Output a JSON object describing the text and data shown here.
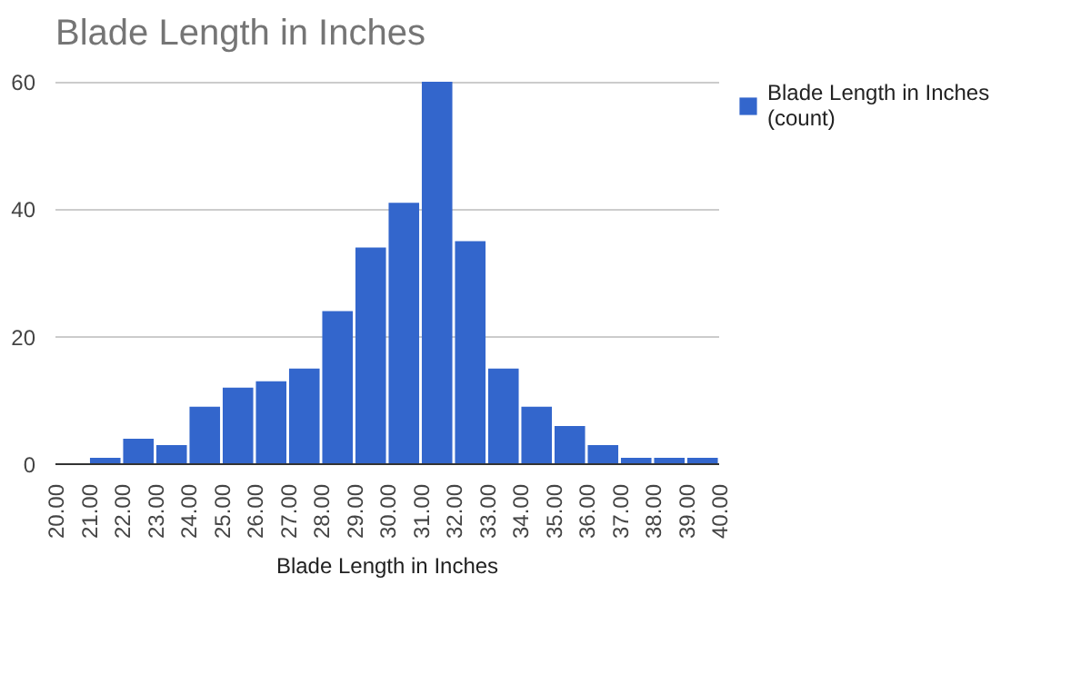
{
  "chart_data": {
    "type": "histogram",
    "title": "Blade Length in Inches",
    "xlabel": "Blade Length in Inches",
    "bins": [
      20,
      21,
      22,
      23,
      24,
      25,
      26,
      27,
      28,
      29,
      30,
      31,
      32,
      33,
      34,
      35,
      36,
      37,
      38,
      39,
      40
    ],
    "series": [
      {
        "name": "Blade Length in Inches (count)",
        "color": "#3366cc",
        "values": [
          0,
          1,
          4,
          3,
          9,
          12,
          13,
          15,
          24,
          34,
          41,
          60,
          35,
          15,
          9,
          6,
          3,
          1,
          1,
          1
        ]
      }
    ],
    "xlim": [
      20,
      40
    ],
    "xticks": [
      {
        "value": 20,
        "label": "20.00"
      },
      {
        "value": 21,
        "label": "21.00"
      },
      {
        "value": 22,
        "label": "22.00"
      },
      {
        "value": 23,
        "label": "23.00"
      },
      {
        "value": 24,
        "label": "24.00"
      },
      {
        "value": 25,
        "label": "25.00"
      },
      {
        "value": 26,
        "label": "26.00"
      },
      {
        "value": 27,
        "label": "27.00"
      },
      {
        "value": 28,
        "label": "28.00"
      },
      {
        "value": 29,
        "label": "29.00"
      },
      {
        "value": 30,
        "label": "30.00"
      },
      {
        "value": 31,
        "label": "31.00"
      },
      {
        "value": 32,
        "label": "32.00"
      },
      {
        "value": 33,
        "label": "33.00"
      },
      {
        "value": 34,
        "label": "34.00"
      },
      {
        "value": 35,
        "label": "35.00"
      },
      {
        "value": 36,
        "label": "36.00"
      },
      {
        "value": 37,
        "label": "37.00"
      },
      {
        "value": 38,
        "label": "38.00"
      },
      {
        "value": 39,
        "label": "39.00"
      },
      {
        "value": 40,
        "label": "40.00"
      }
    ],
    "ylim": [
      0,
      60
    ],
    "yticks": [
      0,
      20,
      40,
      60
    ],
    "grid": "y",
    "legend": "right"
  }
}
